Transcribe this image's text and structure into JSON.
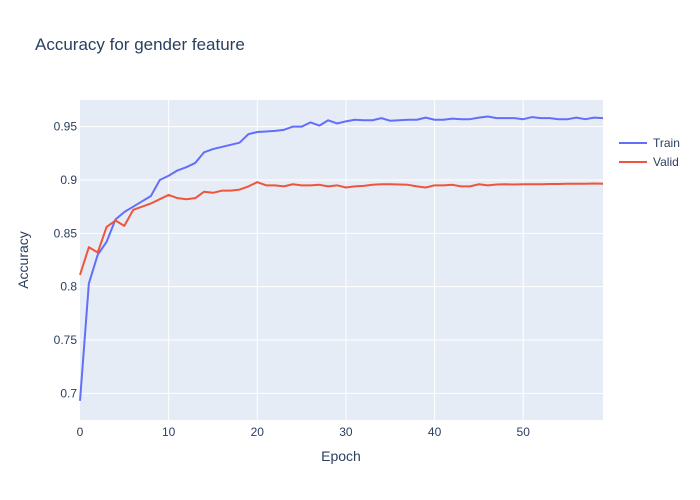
{
  "chart_data": {
    "type": "line",
    "title": "Accuracy for gender feature",
    "xlabel": "Epoch",
    "ylabel": "Accuracy",
    "xlim": [
      0,
      59
    ],
    "ylim": [
      0.675,
      0.975
    ],
    "xticks": [
      0,
      10,
      20,
      30,
      40,
      50
    ],
    "yticks": [
      0.7,
      0.75,
      0.8,
      0.85,
      0.9,
      0.95
    ],
    "ytick_labels": [
      "0.7",
      "0.75",
      "0.8",
      "0.85",
      "0.9",
      "0.95"
    ],
    "grid": true,
    "legend_position": "top-right",
    "series": [
      {
        "name": "Train",
        "color": "#636efa",
        "x": [
          0,
          1,
          2,
          3,
          4,
          5,
          6,
          7,
          8,
          9,
          10,
          11,
          12,
          13,
          14,
          15,
          16,
          17,
          18,
          19,
          20,
          21,
          22,
          23,
          24,
          25,
          26,
          27,
          28,
          29,
          30,
          31,
          32,
          33,
          34,
          35,
          36,
          37,
          38,
          39,
          40,
          41,
          42,
          43,
          44,
          45,
          46,
          47,
          48,
          49,
          50,
          51,
          52,
          53,
          54,
          55,
          56,
          57,
          58,
          59
        ],
        "values": [
          0.693,
          0.803,
          0.83,
          0.842,
          0.863,
          0.87,
          0.875,
          0.88,
          0.885,
          0.9,
          0.904,
          0.909,
          0.912,
          0.916,
          0.926,
          0.929,
          0.931,
          0.933,
          0.935,
          0.943,
          0.945,
          0.9455,
          0.946,
          0.947,
          0.95,
          0.95,
          0.954,
          0.951,
          0.956,
          0.953,
          0.955,
          0.9565,
          0.956,
          0.956,
          0.958,
          0.9555,
          0.956,
          0.9565,
          0.9565,
          0.9585,
          0.9565,
          0.9565,
          0.9575,
          0.957,
          0.957,
          0.9585,
          0.9595,
          0.958,
          0.958,
          0.958,
          0.957,
          0.959,
          0.958,
          0.958,
          0.957,
          0.957,
          0.9585,
          0.957,
          0.9585,
          0.958
        ]
      },
      {
        "name": "Valid",
        "color": "#ef553b",
        "x": [
          0,
          1,
          2,
          3,
          4,
          5,
          6,
          7,
          8,
          9,
          10,
          11,
          12,
          13,
          14,
          15,
          16,
          17,
          18,
          19,
          20,
          21,
          22,
          23,
          24,
          25,
          26,
          27,
          28,
          29,
          30,
          31,
          32,
          33,
          34,
          35,
          36,
          37,
          38,
          39,
          40,
          41,
          42,
          43,
          44,
          45,
          46,
          47,
          48,
          49,
          50,
          51,
          52,
          53,
          54,
          55,
          56,
          57,
          58,
          59
        ],
        "values": [
          0.811,
          0.837,
          0.832,
          0.856,
          0.862,
          0.857,
          0.872,
          0.875,
          0.878,
          0.882,
          0.886,
          0.883,
          0.882,
          0.883,
          0.889,
          0.888,
          0.89,
          0.89,
          0.891,
          0.894,
          0.898,
          0.895,
          0.895,
          0.894,
          0.896,
          0.895,
          0.895,
          0.8955,
          0.894,
          0.895,
          0.893,
          0.894,
          0.8945,
          0.8955,
          0.896,
          0.896,
          0.8958,
          0.8955,
          0.894,
          0.893,
          0.895,
          0.895,
          0.8955,
          0.894,
          0.894,
          0.896,
          0.895,
          0.8958,
          0.896,
          0.8958,
          0.896,
          0.896,
          0.896,
          0.8962,
          0.8963,
          0.8965,
          0.8965,
          0.8965,
          0.8967,
          0.8965
        ]
      }
    ]
  }
}
